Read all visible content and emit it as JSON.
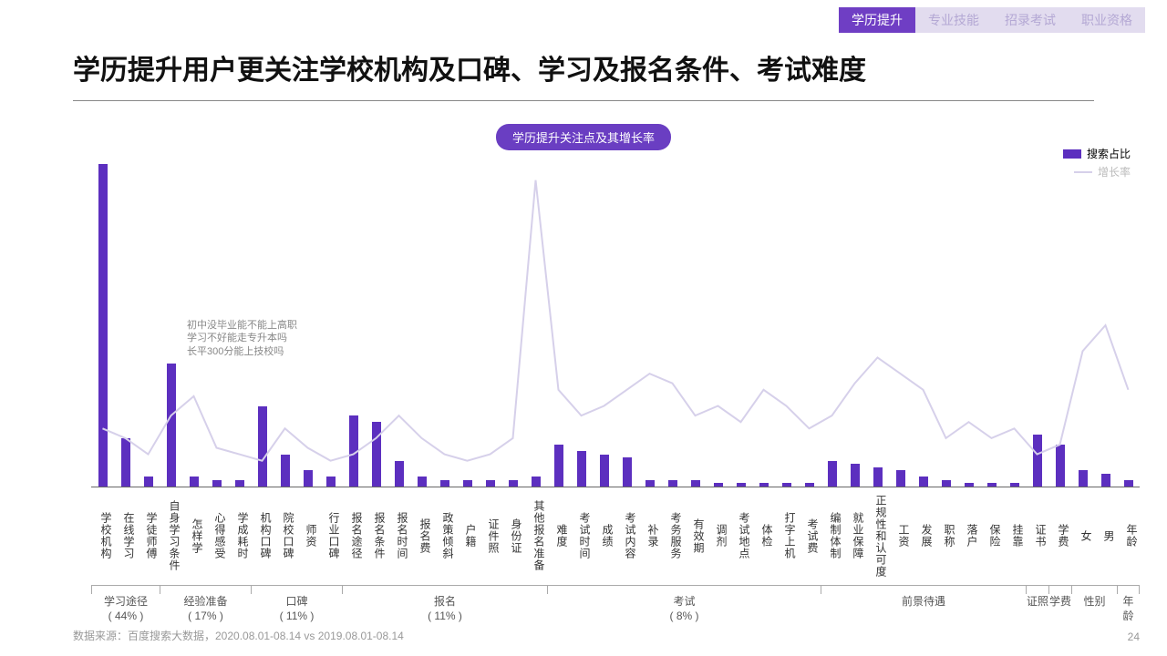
{
  "tabs": [
    {
      "label": "学历提升",
      "active": true
    },
    {
      "label": "专业技能",
      "active": false
    },
    {
      "label": "招录考试",
      "active": false
    },
    {
      "label": "职业资格",
      "active": false
    }
  ],
  "title": "学历提升用户更关注学校机构及口碑、学习及报名条件、考试难度",
  "badge": "学历提升关注点及其增长率",
  "legend": {
    "bar": {
      "label": "搜索占比",
      "color": "#5c2fbf"
    },
    "line": {
      "label": "增长率",
      "color": "#d6d0ea"
    }
  },
  "chart": {
    "type": "bar+line",
    "bar_color": "#5c2fbf",
    "line_color": "#d6d0ea",
    "line_width": 2,
    "background": "#ffffff",
    "axis_color": "#666666",
    "max_bar_value": 100,
    "categories": [
      "学校机构",
      "在线学习",
      "学徒师傅",
      "自身学习条件",
      "怎样学",
      "心得感受",
      "学成耗时",
      "机构口碑",
      "院校口碑",
      "师资",
      "行业口碑",
      "报名途径",
      "报名条件",
      "报名时间",
      "报名费",
      "政策倾斜",
      "户籍",
      "证件照",
      "身份证",
      "其他报名准备",
      "难度",
      "考试时间",
      "成绩",
      "考试内容",
      "补录",
      "考务服务",
      "有效期",
      "调剂",
      "考试地点",
      "体检",
      "打字上机",
      "考试费",
      "编制体制",
      "就业保障",
      "正规性和认可度",
      "工资",
      "发展",
      "职称",
      "落户",
      "保险",
      "挂靠",
      "证书",
      "学费",
      "女",
      "男",
      "年龄"
    ],
    "bar_values": [
      100,
      15,
      3,
      38,
      3,
      2,
      2,
      25,
      10,
      5,
      3,
      22,
      20,
      8,
      3,
      2,
      2,
      2,
      2,
      3,
      13,
      11,
      10,
      9,
      2,
      2,
      2,
      1,
      1,
      1,
      1,
      1,
      8,
      7,
      6,
      5,
      3,
      2,
      1,
      1,
      1,
      16,
      13,
      5,
      4,
      2
    ],
    "line_values": [
      18,
      15,
      10,
      22,
      28,
      12,
      10,
      8,
      18,
      12,
      8,
      10,
      15,
      22,
      15,
      10,
      8,
      10,
      15,
      95,
      30,
      22,
      25,
      30,
      35,
      32,
      22,
      25,
      20,
      30,
      25,
      18,
      22,
      32,
      40,
      35,
      30,
      15,
      20,
      15,
      18,
      10,
      13,
      42,
      50,
      30
    ],
    "annotation": {
      "lines": [
        "初中没毕业能不能上高职",
        "学习不好能走专升本吗",
        "长平300分能上技校吗"
      ],
      "near_index": 3,
      "top_pct": 48
    },
    "groups": [
      {
        "label": "学习途径",
        "pct": "( 44% )",
        "span": 3
      },
      {
        "label": "经验准备",
        "pct": "( 17% )",
        "span": 4
      },
      {
        "label": "口碑",
        "pct": "( 11% )",
        "span": 4
      },
      {
        "label": "报名",
        "pct": "( 11% )",
        "span": 9
      },
      {
        "label": "考试",
        "pct": "( 8% )",
        "span": 12
      },
      {
        "label": "前景待遇",
        "pct": "",
        "span": 9
      },
      {
        "label": "证照",
        "pct": "",
        "span": 1
      },
      {
        "label": "学费",
        "pct": "",
        "span": 1
      },
      {
        "label": "性别",
        "pct": "",
        "span": 2
      },
      {
        "label": "年龄",
        "pct": "",
        "span": 1
      }
    ]
  },
  "footer": "数据来源：百度搜索大数据，2020.08.01-08.14 vs 2019.08.01-08.14",
  "page_number": "24"
}
